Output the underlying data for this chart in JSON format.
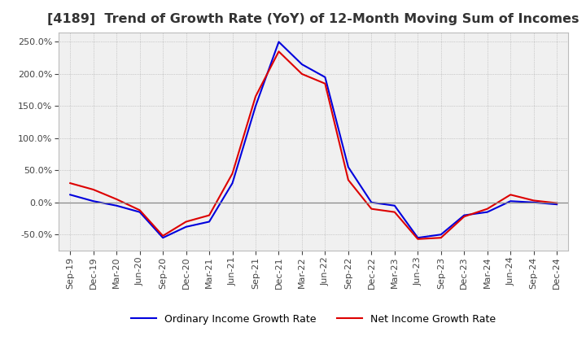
{
  "title": "[4189]  Trend of Growth Rate (YoY) of 12-Month Moving Sum of Incomes",
  "title_fontsize": 11.5,
  "ylim": [
    -75,
    265
  ],
  "yticks": [
    -50,
    0,
    50,
    100,
    150,
    200,
    250
  ],
  "background_color": "#ffffff",
  "plot_bg_color": "#f0f0f0",
  "grid_color": "#aaaaaa",
  "line_ordinary_color": "#0000dd",
  "line_net_color": "#dd0000",
  "legend_ordinary": "Ordinary Income Growth Rate",
  "legend_net": "Net Income Growth Rate",
  "x_labels": [
    "Sep-19",
    "Dec-19",
    "Mar-20",
    "Jun-20",
    "Sep-20",
    "Dec-20",
    "Mar-21",
    "Jun-21",
    "Sep-21",
    "Dec-21",
    "Mar-22",
    "Jun-22",
    "Sep-22",
    "Dec-22",
    "Mar-23",
    "Jun-23",
    "Sep-23",
    "Dec-23",
    "Mar-24",
    "Jun-24",
    "Sep-24",
    "Dec-24"
  ],
  "ordinary_income_growth": [
    12,
    2,
    -5,
    -15,
    -55,
    -38,
    -30,
    30,
    150,
    250,
    215,
    195,
    55,
    0,
    -5,
    -55,
    -50,
    -20,
    -15,
    2,
    0,
    -3
  ],
  "net_income_growth": [
    30,
    20,
    5,
    -12,
    -52,
    -30,
    -20,
    45,
    165,
    235,
    200,
    185,
    35,
    -10,
    -15,
    -57,
    -55,
    -22,
    -10,
    12,
    3,
    -1
  ]
}
